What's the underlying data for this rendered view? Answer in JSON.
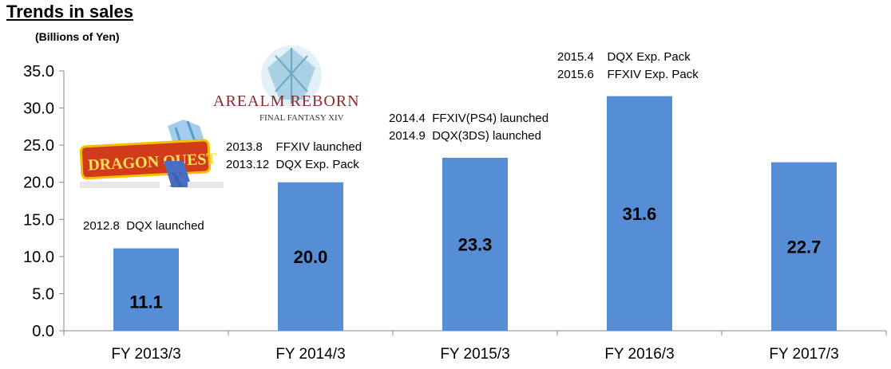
{
  "chart_data": {
    "type": "bar",
    "title": "Trends in sales",
    "ylabel": "(Billions of Yen)",
    "xlabel": "",
    "categories": [
      "FY 2013/3",
      "FY 2014/3",
      "FY 2015/3",
      "FY 2016/3",
      "FY 2017/3"
    ],
    "values": [
      11.1,
      20.0,
      23.3,
      31.6,
      22.7
    ],
    "data_labels": [
      "11.1",
      "20.0",
      "23.3",
      "31.6",
      "22.7"
    ],
    "ylim": [
      0,
      35
    ],
    "yticks": [
      "0.0",
      "5.0",
      "10.0",
      "15.0",
      "20.0",
      "25.0",
      "30.0",
      "35.0"
    ],
    "grid": false,
    "legend": "none",
    "bar_color": "#558ed5",
    "annotations": [
      {
        "category": "FY 2013/3",
        "lines": [
          "2012.8  DQX launched"
        ]
      },
      {
        "category": "FY 2014/3",
        "lines": [
          "2013.8    FFXIV launched",
          "2013.12  DQX Exp. Pack"
        ]
      },
      {
        "category": "FY 2015/3",
        "lines": [
          "2014.4  FFXIV(PS4) launched",
          "2014.9  DQX(3DS) launched"
        ]
      },
      {
        "category": "FY 2016/3",
        "lines": [
          "2015.4    DQX Exp. Pack",
          "2015.6    FFXIV Exp. Pack"
        ]
      }
    ],
    "logos": [
      {
        "name": "dragon-quest-x-logo",
        "text": "DRAGON QUEST X"
      },
      {
        "name": "final-fantasy-xiv-logo",
        "text": "A REALM REBORN FINAL FANTASY XIV"
      }
    ]
  }
}
